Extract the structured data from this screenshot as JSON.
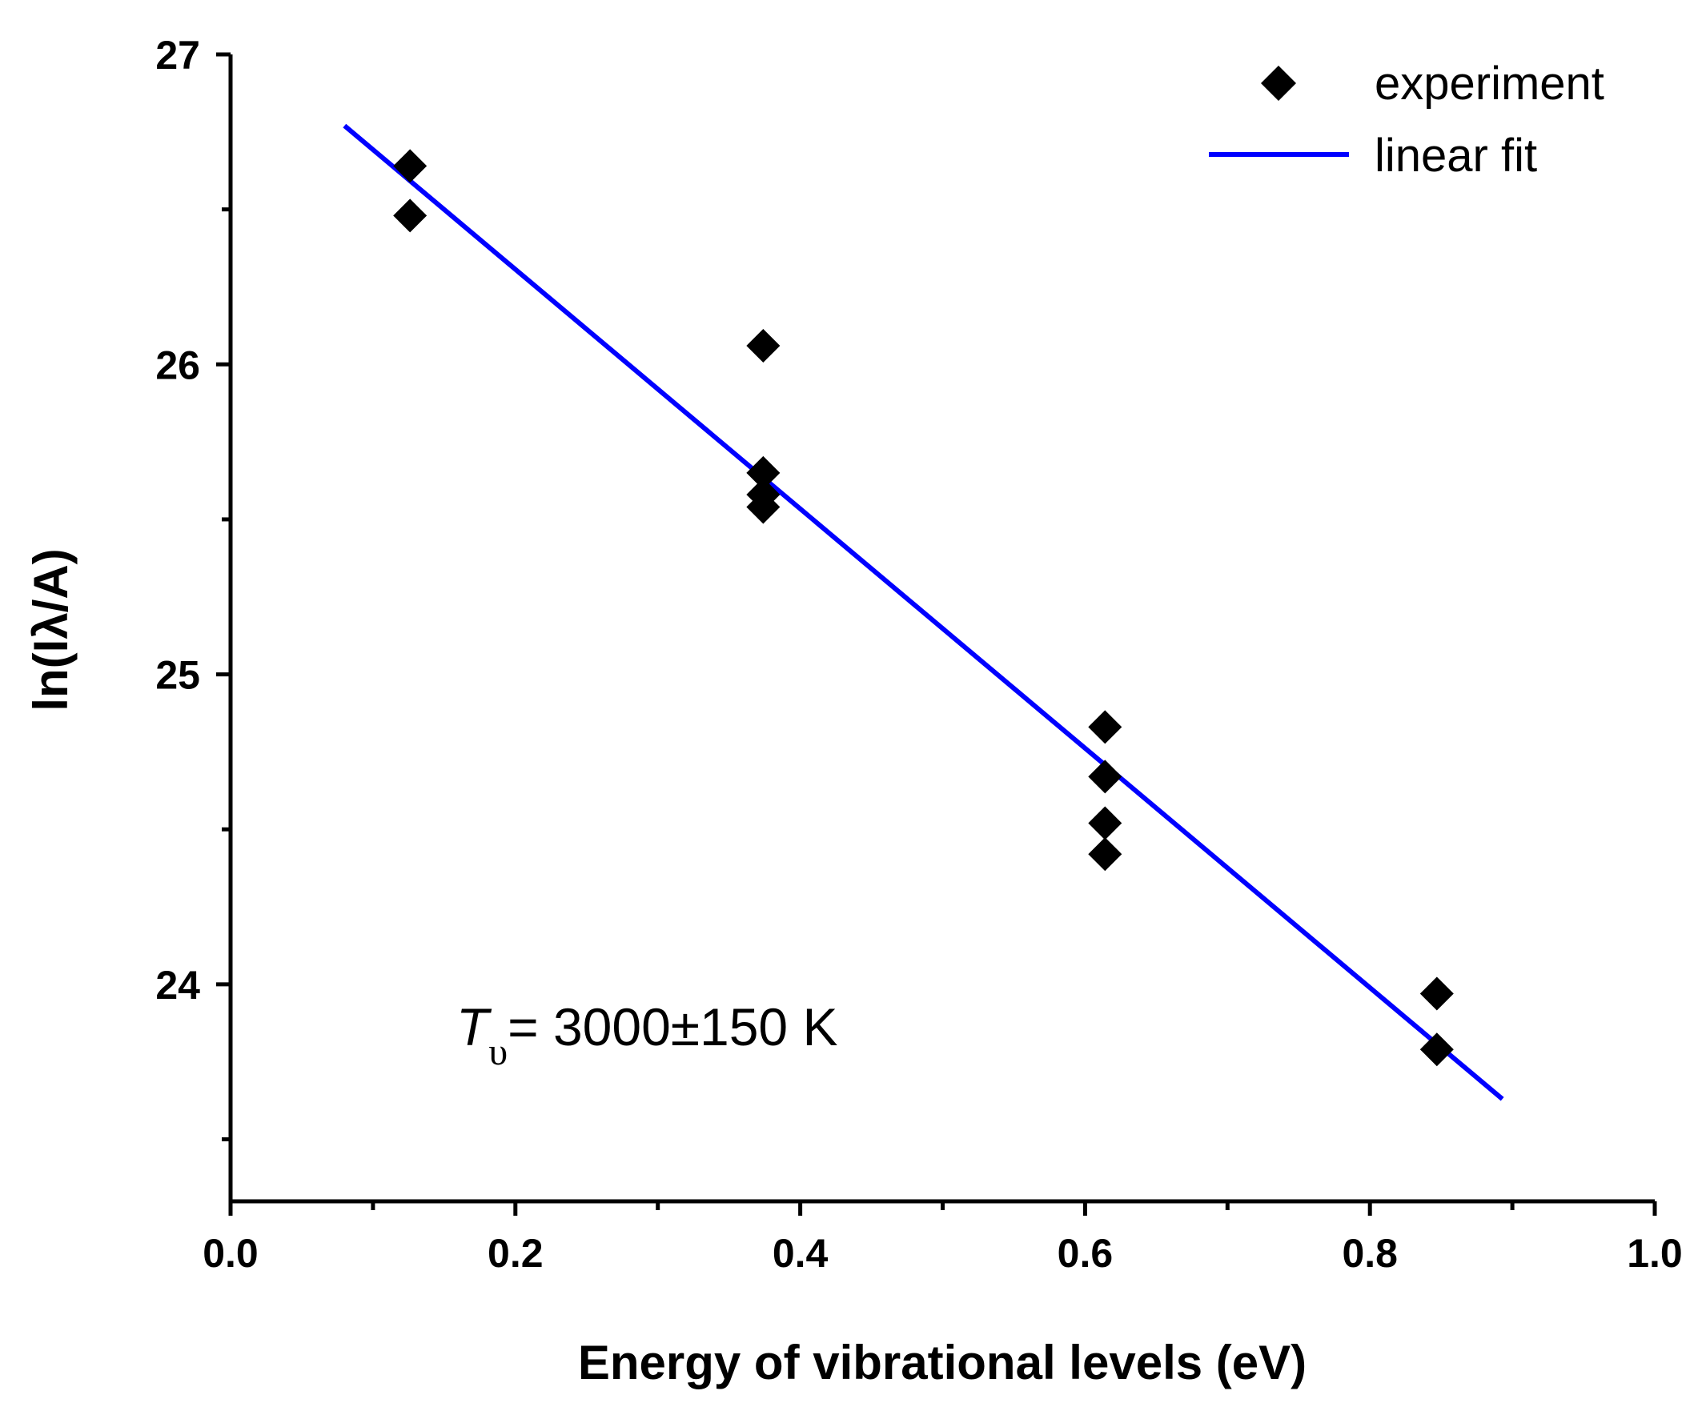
{
  "chart_data": {
    "type": "scatter",
    "title": "",
    "xlabel": "Energy of vibrational levels (eV)",
    "ylabel": "ln(Iλ/A)",
    "xlim": [
      0.0,
      1.0
    ],
    "ylim": [
      23.3,
      27.0
    ],
    "x_ticks": [
      0.0,
      0.2,
      0.4,
      0.6,
      0.8,
      1.0
    ],
    "x_tick_labels": [
      "0.0",
      "0.2",
      "0.4",
      "0.6",
      "0.8",
      "1.0"
    ],
    "x_minor_ticks": [
      0.1,
      0.3,
      0.5,
      0.7,
      0.9
    ],
    "y_ticks": [
      24,
      25,
      26,
      27
    ],
    "y_tick_labels": [
      "24",
      "25",
      "26",
      "27"
    ],
    "y_minor_ticks": [
      23.5,
      24.5,
      25.5,
      26.5
    ],
    "grid": false,
    "legend_position": "top-right",
    "series": [
      {
        "name": "experiment",
        "kind": "scatter",
        "marker": "diamond",
        "color": "#000000",
        "points": [
          [
            0.126,
            26.64
          ],
          [
            0.126,
            26.48
          ],
          [
            0.374,
            26.06
          ],
          [
            0.374,
            25.65
          ],
          [
            0.374,
            25.58
          ],
          [
            0.374,
            25.54
          ],
          [
            0.614,
            24.83
          ],
          [
            0.614,
            24.67
          ],
          [
            0.614,
            24.52
          ],
          [
            0.614,
            24.42
          ],
          [
            0.847,
            23.97
          ],
          [
            0.847,
            23.79
          ]
        ]
      },
      {
        "name": "linear fit",
        "kind": "line",
        "color": "#0000ff",
        "points": [
          [
            0.08,
            26.77
          ],
          [
            0.893,
            23.63
          ]
        ]
      }
    ],
    "annotations": [
      {
        "symbol": "T",
        "subscript": "υ",
        "text": "= 3000±150 K"
      }
    ]
  }
}
